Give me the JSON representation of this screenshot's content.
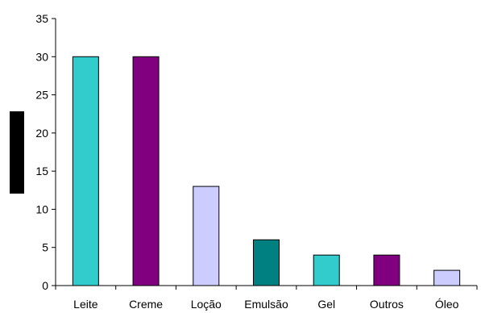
{
  "chart_data": {
    "type": "bar",
    "categories": [
      "Leite",
      "Creme",
      "Loção",
      "Emulsão",
      "Gel",
      "Outros",
      "Óleo"
    ],
    "values": [
      30,
      30,
      13,
      6,
      4,
      4,
      2
    ],
    "colors": [
      "#33CCCC",
      "#800080",
      "#CCCCFF",
      "#008080",
      "#33CCCC",
      "#800080",
      "#CCCCFF"
    ],
    "ylim": [
      0,
      35
    ],
    "yticks": [
      0,
      5,
      10,
      15,
      20,
      25,
      30,
      35
    ],
    "grid": false,
    "legend": "none",
    "title": "",
    "xlabel": "",
    "ylabel": ""
  }
}
